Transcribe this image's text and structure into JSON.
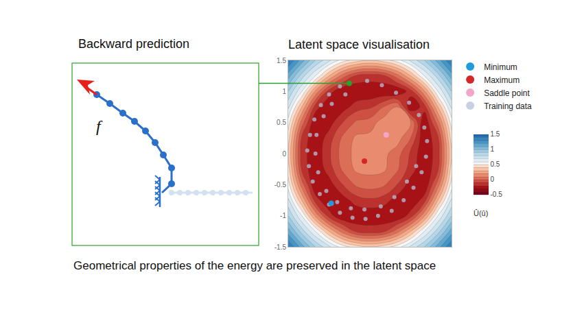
{
  "left_panel": {
    "title": "Backward prediction",
    "label": "f"
  },
  "caption": "Geometrical properties of the energy are preserved in the latent space",
  "chart_data": {
    "type": "contour",
    "title": "Latent space visualisation",
    "x": [
      -1.5,
      -1.25,
      -1,
      -0.75,
      -0.5,
      -0.25,
      0,
      0.25,
      0.5,
      0.75,
      1,
      1.25,
      1.5
    ],
    "y": [
      -1.5,
      -1.25,
      -1,
      -0.75,
      -0.5,
      -0.25,
      0,
      0.25,
      0.5,
      0.75,
      1,
      1.25,
      1.5
    ],
    "z": [
      [
        1.4,
        1.15,
        0.9,
        0.72,
        0.55,
        0.45,
        0.4,
        0.45,
        0.55,
        0.72,
        0.9,
        1.15,
        1.4
      ],
      [
        1.15,
        0.85,
        0.6,
        0.3,
        0.05,
        -0.12,
        -0.15,
        -0.12,
        0.05,
        0.3,
        0.6,
        0.85,
        1.15
      ],
      [
        0.9,
        0.6,
        0.18,
        -0.15,
        -0.3,
        -0.29,
        -0.28,
        -0.29,
        -0.3,
        -0.15,
        0.18,
        0.6,
        0.9
      ],
      [
        0.72,
        0.3,
        -0.15,
        -0.3,
        -0.25,
        -0.15,
        -0.12,
        -0.15,
        -0.25,
        -0.3,
        -0.15,
        0.3,
        0.72
      ],
      [
        0.55,
        0.05,
        -0.3,
        -0.25,
        -0.1,
        0.02,
        0.05,
        0.02,
        -0.1,
        -0.25,
        -0.3,
        0.05,
        0.55
      ],
      [
        0.45,
        -0.12,
        -0.29,
        -0.15,
        0.02,
        0.12,
        0.13,
        0.12,
        0.02,
        -0.15,
        -0.29,
        -0.12,
        0.45
      ],
      [
        0.4,
        -0.15,
        -0.28,
        -0.12,
        0.05,
        0.13,
        0.15,
        0.13,
        0.05,
        -0.12,
        -0.28,
        -0.15,
        0.4
      ],
      [
        0.45,
        -0.12,
        -0.29,
        -0.15,
        0.02,
        0.12,
        0.13,
        0.12,
        0.15,
        0.0,
        -0.29,
        -0.12,
        0.45
      ],
      [
        0.55,
        0.05,
        -0.3,
        -0.25,
        -0.1,
        0.02,
        0.05,
        0.15,
        0.2,
        0.1,
        -0.3,
        0.05,
        0.55
      ],
      [
        0.72,
        0.3,
        -0.15,
        -0.3,
        -0.25,
        -0.15,
        -0.12,
        0.0,
        0.1,
        -0.3,
        -0.15,
        0.3,
        0.72
      ],
      [
        0.9,
        0.6,
        0.18,
        -0.15,
        -0.3,
        -0.29,
        -0.28,
        -0.29,
        -0.3,
        -0.15,
        0.18,
        0.6,
        0.9
      ],
      [
        1.15,
        0.85,
        0.6,
        0.3,
        0.05,
        -0.12,
        -0.15,
        -0.12,
        0.05,
        0.3,
        0.6,
        0.85,
        1.15
      ],
      [
        1.4,
        1.15,
        0.9,
        0.72,
        0.55,
        0.45,
        0.4,
        0.45,
        0.55,
        0.72,
        0.9,
        1.15,
        1.4
      ]
    ],
    "xlim": [
      -1.5,
      1.5
    ],
    "ylim": [
      -1.5,
      1.5
    ],
    "yticks": [
      -1.5,
      -1,
      -0.5,
      0,
      0.5,
      1,
      1.5
    ],
    "tick_labels": "y",
    "grid": false,
    "legend": "right",
    "colorbar": {
      "title": "Û(û)",
      "range": [
        -0.5,
        1.5
      ],
      "ticks": [
        -0.5,
        0,
        0.5,
        1,
        1.5
      ]
    },
    "series": [
      {
        "name": "Minimum",
        "type": "scatter",
        "marker": "circle",
        "color": "#1f9bd7",
        "x": [
          -0.71
        ],
        "y": [
          -0.8
        ]
      },
      {
        "name": "Maximum",
        "type": "scatter",
        "marker": "circle",
        "color": "#d62728",
        "x": [
          -0.1
        ],
        "y": [
          -0.12
        ]
      },
      {
        "name": "Saddle point",
        "type": "scatter",
        "marker": "circle",
        "color": "#f4a6c8",
        "x": [
          0.3
        ],
        "y": [
          0.3
        ]
      },
      {
        "name": "Training data",
        "type": "scatter",
        "marker": "circle",
        "color": "#b4c2da",
        "x": [
          -0.38,
          -0.55,
          -0.75,
          -0.9,
          -1.02,
          -1.1,
          -1.15,
          -1.12,
          -1.05,
          -0.92,
          -0.75,
          -0.55,
          -0.32,
          -0.08,
          0.15,
          0.4,
          0.62,
          0.8,
          0.95,
          1.03,
          1.05,
          1.0,
          0.9,
          0.72,
          0.48,
          0.22,
          -0.05,
          -0.45,
          -0.7,
          -0.85,
          -0.98,
          -1.0,
          -0.95,
          -0.8,
          -0.6,
          -0.35,
          -0.1,
          0.2,
          0.45,
          0.68,
          0.85
        ],
        "y": [
          1.13,
          1.08,
          0.95,
          0.78,
          0.55,
          0.3,
          0.05,
          -0.2,
          -0.45,
          -0.65,
          -0.82,
          -0.95,
          -1.03,
          -1.05,
          -1.0,
          -0.92,
          -0.75,
          -0.55,
          -0.3,
          -0.05,
          0.2,
          0.42,
          0.62,
          0.82,
          0.98,
          1.1,
          1.17,
          0.95,
          0.8,
          0.6,
          0.3,
          0.0,
          -0.3,
          -0.6,
          -0.78,
          -0.88,
          -0.9,
          -0.85,
          -0.7,
          -0.45,
          -0.2
        ]
      }
    ],
    "highlight": {
      "x": -0.38,
      "y": 1.13,
      "color": "#2ca02c"
    }
  }
}
